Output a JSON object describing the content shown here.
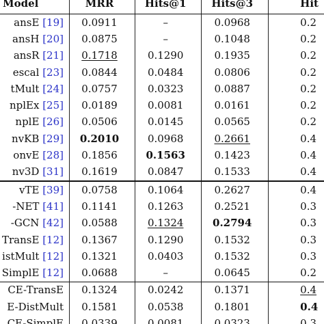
{
  "header": [
    "Model",
    "MRR",
    "Hits@1",
    "Hits@3",
    "Hit"
  ],
  "rows": [
    {
      "name": "ansE",
      "cite": "[19]",
      "mrr": "0.0911",
      "h1": "–",
      "h3": "0.0968",
      "h10": "0.2"
    },
    {
      "name": "ansH",
      "cite": "[20]",
      "mrr": "0.0875",
      "h1": "–",
      "h3": "0.1048",
      "h10": "0.2"
    },
    {
      "name": "ansR",
      "cite": "[21]",
      "mrr": "0.1718",
      "h1": "0.1290",
      "h3": "0.1935",
      "h10": "0.2"
    },
    {
      "name": "escal",
      "cite": "[23]",
      "mrr": "0.0844",
      "h1": "0.0484",
      "h3": "0.0806",
      "h10": "0.2"
    },
    {
      "name": "tMult",
      "cite": "[24]",
      "mrr": "0.0757",
      "h1": "0.0323",
      "h3": "0.0887",
      "h10": "0.2"
    },
    {
      "name": "nplEx",
      "cite": "[25]",
      "mrr": "0.0189",
      "h1": "0.0081",
      "h3": "0.0161",
      "h10": "0.2"
    },
    {
      "name": "nplE",
      "cite": "[26]",
      "mrr": "0.0506",
      "h1": "0.0145",
      "h3": "0.0565",
      "h10": "0.2"
    },
    {
      "name": "nvKB",
      "cite": "[29]",
      "mrr": "0.2010",
      "h1": "0.0968",
      "h3": "0.2661",
      "h10": "0.4"
    },
    {
      "name": "onvE",
      "cite": "[28]",
      "mrr": "0.1856",
      "h1": "0.1563",
      "h3": "0.1423",
      "h10": "0.4"
    },
    {
      "name": "nv3D",
      "cite": "[31]",
      "mrr": "0.1619",
      "h1": "0.0847",
      "h3": "0.1533",
      "h10": "0.4"
    },
    {
      "name": "vTE",
      "cite": "[39]",
      "mrr": "0.0758",
      "h1": "0.1064",
      "h3": "0.2627",
      "h10": "0.4"
    },
    {
      "name": "-NET",
      "cite": "[41]",
      "mrr": "0.1141",
      "h1": "0.1263",
      "h3": "0.2521",
      "h10": "0.3"
    },
    {
      "name": "-GCN",
      "cite": "[42]",
      "mrr": "0.0588",
      "h1": "0.1324",
      "h3": "0.2794",
      "h10": "0.3"
    },
    {
      "name": "TransE",
      "cite": "[12]",
      "mrr": "0.1367",
      "h1": "0.1290",
      "h3": "0.1532",
      "h10": "0.3"
    },
    {
      "name": "istMult",
      "cite": "[12]",
      "mrr": "0.1321",
      "h1": "0.0403",
      "h3": "0.1532",
      "h10": "0.3"
    },
    {
      "name": "SimplE",
      "cite": "[12]",
      "mrr": "0.0688",
      "h1": "–",
      "h3": "0.0645",
      "h10": "0.2"
    },
    {
      "name": "CE-TransE",
      "cite": "",
      "mrr": "0.1324",
      "h1": "0.0242",
      "h3": "0.1371",
      "h10": "0.4"
    },
    {
      "name": "E-DistMult",
      "cite": "",
      "mrr": "0.1581",
      "h1": "0.0538",
      "h3": "0.1801",
      "h10": "0.4"
    },
    {
      "name": "CE-SimplE",
      "cite": "",
      "mrr": "0.0339",
      "h1": "0.0081",
      "h3": "0.0323",
      "h10": "0.3"
    }
  ]
}
